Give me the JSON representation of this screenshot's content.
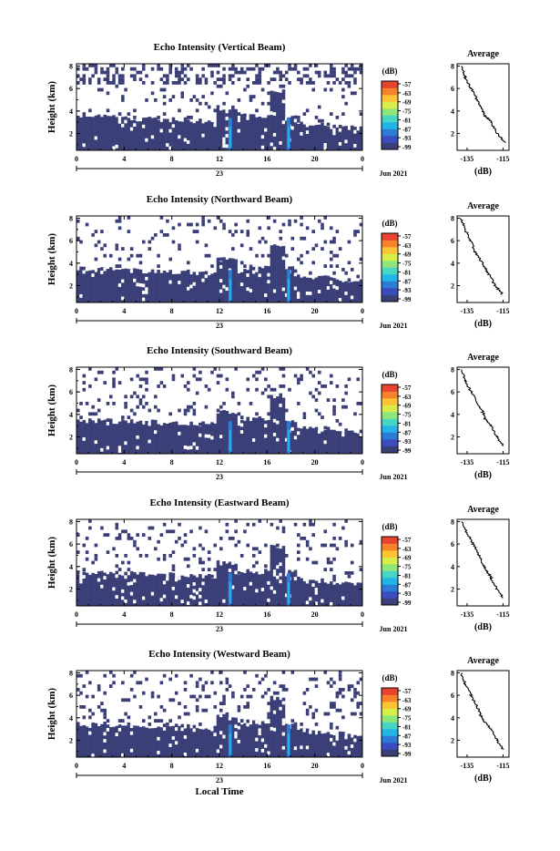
{
  "figure": {
    "time_axis_label": "Local Time",
    "colorbar_unit": "(dB)",
    "colorbar_ticks": [
      "-57",
      "-63",
      "-69",
      "-75",
      "-81",
      "-87",
      "-93",
      "-99"
    ],
    "colors": {
      "echo_fill": "#3b3f78",
      "colorscale": [
        "#3b3f78",
        "#3b4cc0",
        "#2c7bd6",
        "#22b5e6",
        "#48d6c4",
        "#8ee67b",
        "#d8ec4a",
        "#fcc333",
        "#f7822c",
        "#e8432e"
      ]
    }
  },
  "chart_data": [
    {
      "type": "heatmap",
      "title": "Echo Intensity (Vertical Beam)",
      "ylabel": "Height (km)",
      "xlabel": "",
      "x_ticks": [
        "0",
        "4",
        "8",
        "12",
        "16",
        "20",
        "0"
      ],
      "y_ticks": [
        "2",
        "4",
        "6",
        "8"
      ],
      "xlim": [
        0,
        24
      ],
      "ylim": [
        0.5,
        8.2
      ],
      "date_day": "23",
      "date_month": "Jun 2021",
      "profile": {
        "title": "Average",
        "xlabel": "(dB)",
        "x_ticks": [
          "-135",
          "-115"
        ],
        "y_ticks": [
          "2",
          "4",
          "6",
          "8"
        ],
        "xlim": [
          -138,
          -112
        ],
        "ylim": [
          0.5,
          8.2
        ],
        "heights": [
          1.2,
          2.0,
          3.0,
          3.6,
          4.2,
          5.0,
          6.0,
          7.0,
          8.0
        ],
        "values": [
          -114,
          -118,
          -121,
          -124,
          -126,
          -128,
          -131,
          -134,
          -136
        ]
      }
    },
    {
      "type": "heatmap",
      "title": "Echo Intensity (Northward Beam)",
      "ylabel": "Height (km)",
      "xlabel": "",
      "x_ticks": [
        "0",
        "4",
        "8",
        "12",
        "16",
        "20",
        "0"
      ],
      "y_ticks": [
        "2",
        "4",
        "6",
        "8"
      ],
      "xlim": [
        0,
        24
      ],
      "ylim": [
        0.5,
        8.2
      ],
      "date_day": "23",
      "date_month": "Jun 2021",
      "profile": {
        "title": "Average",
        "xlabel": "(dB)",
        "x_ticks": [
          "-135",
          "-115"
        ],
        "y_ticks": [
          "2",
          "4",
          "6",
          "8"
        ],
        "xlim": [
          -138,
          -112
        ],
        "ylim": [
          0.5,
          8.2
        ],
        "heights": [
          1.2,
          2.0,
          3.0,
          3.6,
          4.2,
          5.0,
          6.0,
          7.0,
          8.0
        ],
        "values": [
          -115,
          -119,
          -122,
          -124,
          -126,
          -129,
          -131,
          -134,
          -136
        ]
      }
    },
    {
      "type": "heatmap",
      "title": "Echo Intensity (Southward Beam)",
      "ylabel": "Height (km)",
      "xlabel": "",
      "x_ticks": [
        "0",
        "4",
        "8",
        "12",
        "16",
        "20",
        "0"
      ],
      "y_ticks": [
        "2",
        "4",
        "6",
        "8"
      ],
      "xlim": [
        0,
        24
      ],
      "ylim": [
        0.5,
        8.2
      ],
      "date_day": "23",
      "date_month": "Jun 2021",
      "profile": {
        "title": "Average",
        "xlabel": "(dB)",
        "x_ticks": [
          "-135",
          "-115"
        ],
        "y_ticks": [
          "2",
          "4",
          "6",
          "8"
        ],
        "xlim": [
          -138,
          -112
        ],
        "ylim": [
          0.5,
          8.2
        ],
        "heights": [
          1.2,
          2.0,
          3.0,
          3.6,
          4.2,
          5.0,
          6.0,
          7.0,
          8.0
        ],
        "values": [
          -115,
          -118,
          -121,
          -124,
          -125,
          -128,
          -131,
          -134,
          -136
        ]
      }
    },
    {
      "type": "heatmap",
      "title": "Echo Intensity (Eastward Beam)",
      "ylabel": "Height (km)",
      "xlabel": "",
      "x_ticks": [
        "0",
        "4",
        "8",
        "12",
        "16",
        "20",
        "0"
      ],
      "y_ticks": [
        "2",
        "4",
        "6",
        "8"
      ],
      "xlim": [
        0,
        24
      ],
      "ylim": [
        0.5,
        8.2
      ],
      "date_day": "23",
      "date_month": "Jun 2021",
      "profile": {
        "title": "Average",
        "xlabel": "(dB)",
        "x_ticks": [
          "-135",
          "-115"
        ],
        "y_ticks": [
          "2",
          "4",
          "6",
          "8"
        ],
        "xlim": [
          -138,
          -112
        ],
        "ylim": [
          0.5,
          8.2
        ],
        "heights": [
          1.2,
          2.0,
          3.0,
          3.6,
          4.2,
          5.0,
          6.0,
          7.0,
          8.0
        ],
        "values": [
          -115,
          -118,
          -121,
          -123,
          -125,
          -127,
          -130,
          -133,
          -136
        ]
      }
    },
    {
      "type": "heatmap",
      "title": "Echo Intensity (Westward Beam)",
      "ylabel": "Height (km)",
      "xlabel": "Local Time",
      "x_ticks": [
        "0",
        "4",
        "8",
        "12",
        "16",
        "20",
        "0"
      ],
      "y_ticks": [
        "2",
        "4",
        "6",
        "8"
      ],
      "xlim": [
        0,
        24
      ],
      "ylim": [
        0.5,
        8.2
      ],
      "date_day": "23",
      "date_month": "Jun 2021",
      "profile": {
        "title": "Average",
        "xlabel": "(dB)",
        "x_ticks": [
          "-135",
          "-115"
        ],
        "y_ticks": [
          "2",
          "4",
          "6",
          "8"
        ],
        "xlim": [
          -138,
          -112
        ],
        "ylim": [
          0.5,
          8.2
        ],
        "heights": [
          1.2,
          2.0,
          3.0,
          3.6,
          4.2,
          5.0,
          6.0,
          7.0,
          8.0
        ],
        "values": [
          -115,
          -118,
          -121,
          -124,
          -126,
          -128,
          -131,
          -134,
          -136
        ]
      }
    }
  ]
}
